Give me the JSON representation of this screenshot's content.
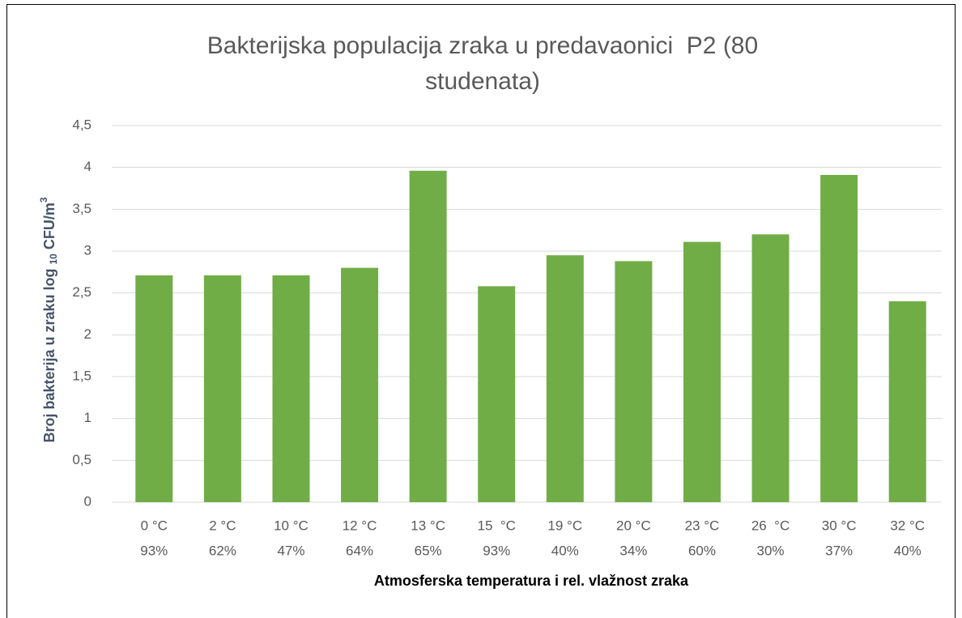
{
  "chart_data": {
    "type": "bar",
    "title": [
      "Bakterijska populacija zraka u predavaonici  P2 (80",
      "studenata)"
    ],
    "y_label": [
      "Broj bakterija u zraku log ",
      "10",
      " CFU/m",
      "3"
    ],
    "x_label": "Atmosferska temperatura i rel. vlažnost zraka",
    "categories": [
      [
        "0 °C",
        "93%"
      ],
      [
        "2 °C",
        "62%"
      ],
      [
        "10 °C",
        "47%"
      ],
      [
        "12 °C",
        "64%"
      ],
      [
        "13 °C",
        "65%"
      ],
      [
        "15  °C",
        "93%"
      ],
      [
        "19 °C",
        "40%"
      ],
      [
        "20 °C",
        "34%"
      ],
      [
        "23 °C",
        "60%"
      ],
      [
        "26  °C",
        "30%"
      ],
      [
        "30 °C",
        "37%"
      ],
      [
        "32 °C",
        "40%"
      ]
    ],
    "values": [
      2.71,
      2.71,
      2.71,
      2.8,
      3.96,
      2.58,
      2.95,
      2.88,
      3.11,
      3.2,
      3.91,
      2.4
    ],
    "color": "#70ad47",
    "ylim": [
      0,
      4.5
    ],
    "yticks": [
      0,
      {
        "value": 0.5,
        "label": "0,5"
      },
      1,
      {
        "value": 1.5,
        "label": "1,5"
      },
      2,
      {
        "value": 2.5,
        "label": "2,5"
      },
      3,
      {
        "value": 3.5,
        "label": "3,5"
      },
      4,
      {
        "value": 4.5,
        "label": "4,5"
      }
    ],
    "grid": true
  }
}
